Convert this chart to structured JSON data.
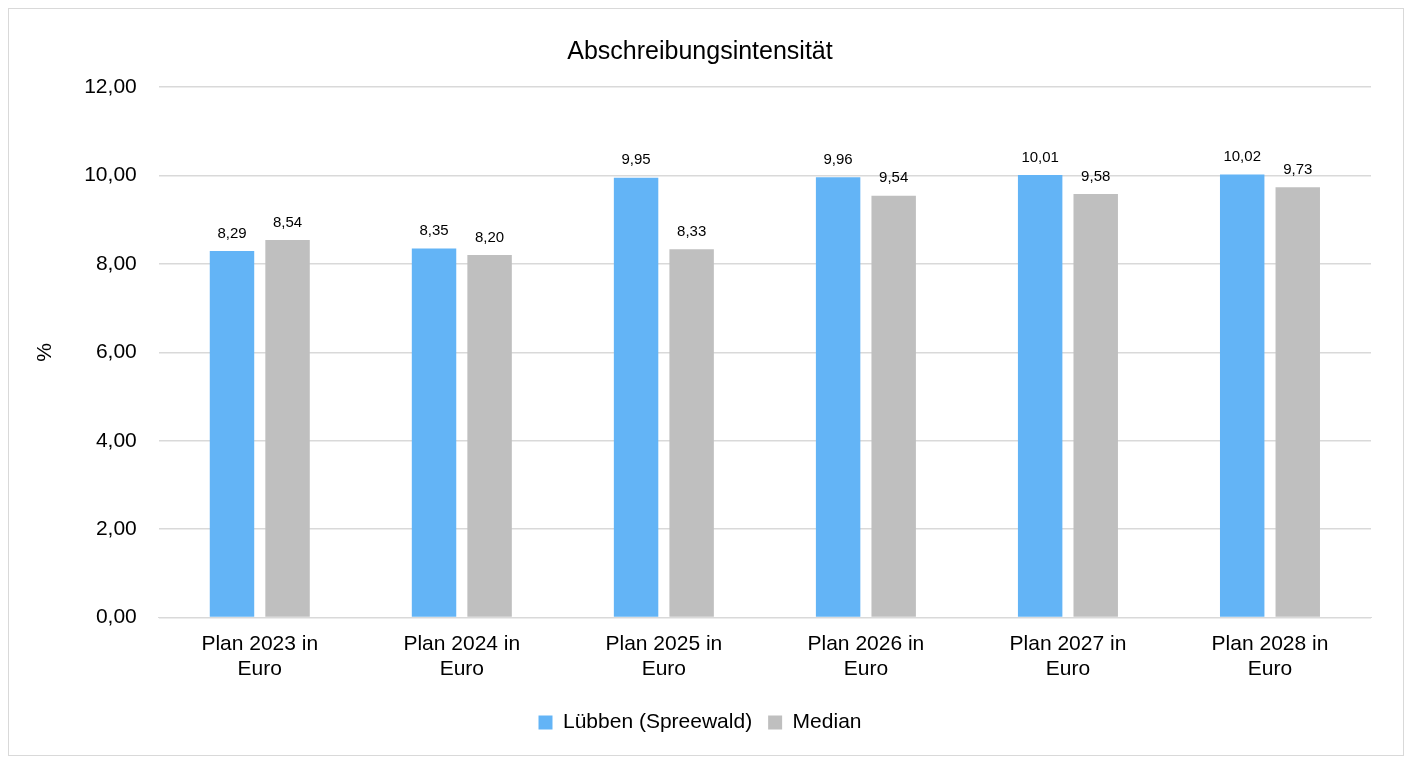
{
  "chart_data": {
    "type": "bar",
    "title": "Abschreibungsintensität",
    "ylabel": "%",
    "categories": [
      "Plan 2023 in Euro",
      "Plan 2024 in Euro",
      "Plan 2025 in Euro",
      "Plan 2026 in Euro",
      "Plan 2027 in Euro",
      "Plan 2028 in Euro"
    ],
    "series": [
      {
        "name": "Lübben (Spreewald)",
        "color": "#63b4f6",
        "values": [
          8.29,
          8.35,
          9.95,
          9.96,
          10.01,
          10.02
        ],
        "value_labels": [
          "8,29",
          "8,35",
          "9,95",
          "9,96",
          "10,01",
          "10,02"
        ]
      },
      {
        "name": "Median",
        "color": "#bfbfbf",
        "values": [
          8.54,
          8.2,
          8.33,
          9.54,
          9.58,
          9.73
        ],
        "value_labels": [
          "8,54",
          "8,20",
          "8,33",
          "9,54",
          "9,58",
          "9,73"
        ]
      }
    ],
    "ylim": [
      0,
      12
    ],
    "yticks": [
      {
        "value": 0,
        "label": "0,00"
      },
      {
        "value": 2,
        "label": "2,00"
      },
      {
        "value": 4,
        "label": "4,00"
      },
      {
        "value": 6,
        "label": "6,00"
      },
      {
        "value": 8,
        "label": "8,00"
      },
      {
        "value": 10,
        "label": "10,00"
      },
      {
        "value": 12,
        "label": "12,00"
      }
    ],
    "grid": "y",
    "legend": "bottom"
  }
}
